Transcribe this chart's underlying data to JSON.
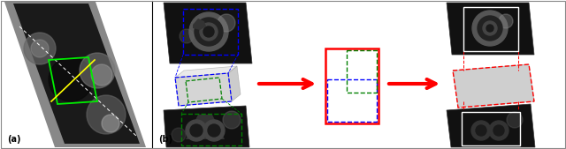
{
  "fig_width": 6.4,
  "fig_height": 1.69,
  "dpi": 100,
  "background_color": "#ffffff",
  "panel_a_label": "(a)",
  "panel_b_label": "(b)"
}
